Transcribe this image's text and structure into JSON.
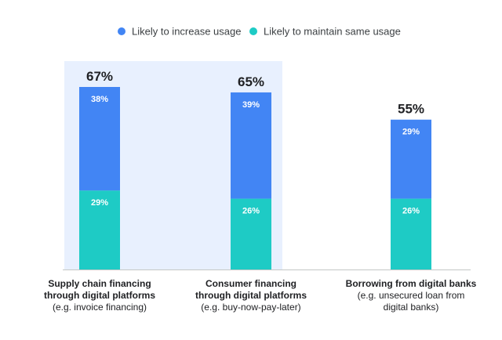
{
  "chart_data": {
    "type": "bar",
    "stacked": true,
    "categories": [
      {
        "lines": [
          "Supply chain financing",
          "through digital platforms",
          "(e.g. invoice financing)"
        ],
        "bold_lines": 2,
        "highlighted": true
      },
      {
        "lines": [
          "Consumer financing",
          "through digital platforms",
          "(e.g. buy-now-pay-later)"
        ],
        "bold_lines": 2,
        "highlighted": true
      },
      {
        "lines": [
          "Borrowing from digital banks",
          "(e.g. unsecured loan from",
          "digital banks)"
        ],
        "bold_lines": 1,
        "highlighted": false
      }
    ],
    "series": [
      {
        "name": "Likely to maintain same usage",
        "color": "#1ecbc5",
        "values": [
          29,
          26,
          26
        ]
      },
      {
        "name": "Likely to increase usage",
        "color": "#4285f4",
        "values": [
          38,
          39,
          29
        ]
      }
    ],
    "segment_labels": [
      [
        "29%",
        "26%",
        "26%"
      ],
      [
        "38%",
        "39%",
        "29%"
      ]
    ],
    "totals": [
      67,
      65,
      55
    ],
    "total_labels": [
      "67%",
      "65%",
      "55%"
    ],
    "legend": [
      {
        "label": "Likely to increase usage",
        "color": "#4285f4"
      },
      {
        "label": "Likely to maintain same usage",
        "color": "#1ecbc5"
      }
    ],
    "highlight_color": "#e8f0fe",
    "axis_color": "#c4c7c5",
    "ylim": [
      0,
      70
    ],
    "legend_position": "top-center"
  }
}
